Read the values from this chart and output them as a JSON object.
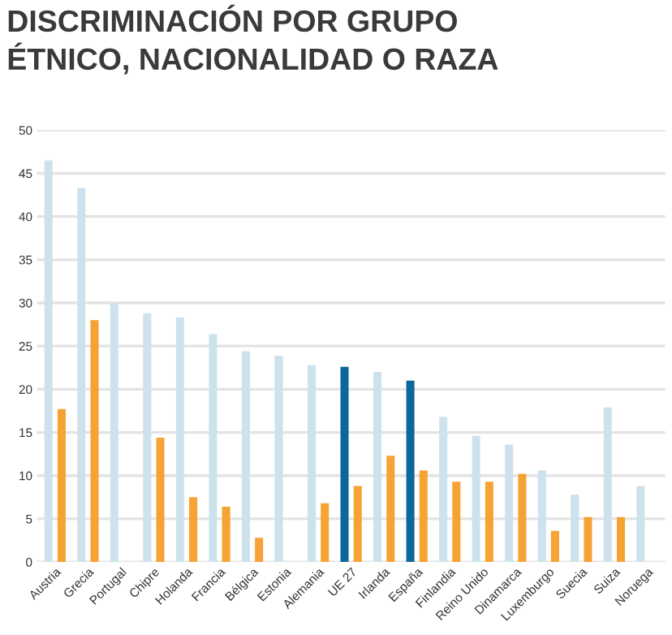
{
  "chart_data": {
    "type": "bar",
    "title": "DISCRIMINACIÓN POR GRUPO\nÉTNICO, NACIONALIDAD O RAZA",
    "categories": [
      "Austria",
      "Grecia",
      "Portugal",
      "Chipre",
      "Holanda",
      "Francia",
      "Bélgica",
      "Estonia",
      "Alemania",
      "UE 27",
      "Irlanda",
      "España",
      "Finlandia",
      "Reino Unido",
      "Dinamarca",
      "Luxemburgo",
      "Suecia",
      "Suiza",
      "Noruega"
    ],
    "series": [
      {
        "colors": [
          "#cde2ec",
          "#cde2ec",
          "#cde2ec",
          "#cde2ec",
          "#cde2ec",
          "#cde2ec",
          "#cde2ec",
          "#cde2ec",
          "#cde2ec",
          "#0b679c",
          "#cde2ec",
          "#0b679c",
          "#cde2ec",
          "#cde2ec",
          "#cde2ec",
          "#cde2ec",
          "#cde2ec",
          "#cde2ec",
          "#cde2ec"
        ],
        "values": [
          46.5,
          43.3,
          30,
          28.8,
          28.3,
          26.4,
          24.4,
          23.9,
          22.8,
          22.6,
          22,
          21,
          16.8,
          14.6,
          13.6,
          10.6,
          7.8,
          17.9,
          8.8
        ]
      },
      {
        "color": "#f7a234",
        "values": [
          17.7,
          28,
          null,
          14.4,
          7.5,
          6.4,
          2.8,
          null,
          6.8,
          8.8,
          12.3,
          10.6,
          9.3,
          9.3,
          10.2,
          3.6,
          5.2,
          5.2,
          null
        ]
      }
    ],
    "ylim": [
      0,
      50
    ],
    "yticks": [
      0,
      5,
      10,
      15,
      20,
      25,
      30,
      35,
      40,
      45,
      50
    ],
    "grid": "y",
    "legend": false
  }
}
